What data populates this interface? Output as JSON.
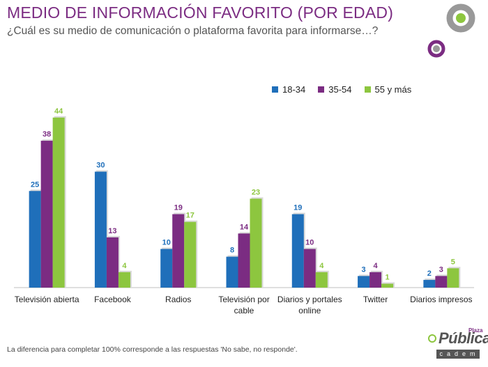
{
  "header": {
    "title": "MEDIO DE INFORMACIÓN FAVORITO (POR EDAD)",
    "subtitle": "¿Cuál es su medio de comunicación o plataforma favorita para informarse…?"
  },
  "footnote": "La diferencia para completar 100% corresponde a las respuestas 'No sabe, no responde'.",
  "brand": {
    "word": "Pública",
    "super": "Plaza",
    "sub": "cadem"
  },
  "colors": {
    "accent": "#7b2c82",
    "green": "#8dc63f"
  },
  "chart_data": {
    "type": "bar",
    "title": "",
    "xlabel": "",
    "ylabel": "",
    "ylim": [
      0,
      50
    ],
    "grid": false,
    "legend_position": "top-right",
    "categories": [
      [
        "Televisión abierta"
      ],
      [
        "Facebook"
      ],
      [
        "Radios"
      ],
      [
        "Televisión por",
        "cable"
      ],
      [
        "Diarios y portales",
        "online"
      ],
      [
        "Twitter"
      ],
      [
        "Diarios impresos"
      ]
    ],
    "series": [
      {
        "name": "18-34",
        "color": "#1f6fba",
        "values": [
          25,
          30,
          10,
          8,
          19,
          3,
          2
        ]
      },
      {
        "name": "35-54",
        "color": "#7b2c82",
        "values": [
          38,
          13,
          19,
          14,
          10,
          4,
          3
        ]
      },
      {
        "name": "55 y más",
        "color": "#8dc63f",
        "values": [
          44,
          4,
          17,
          23,
          4,
          1,
          5
        ]
      }
    ]
  }
}
